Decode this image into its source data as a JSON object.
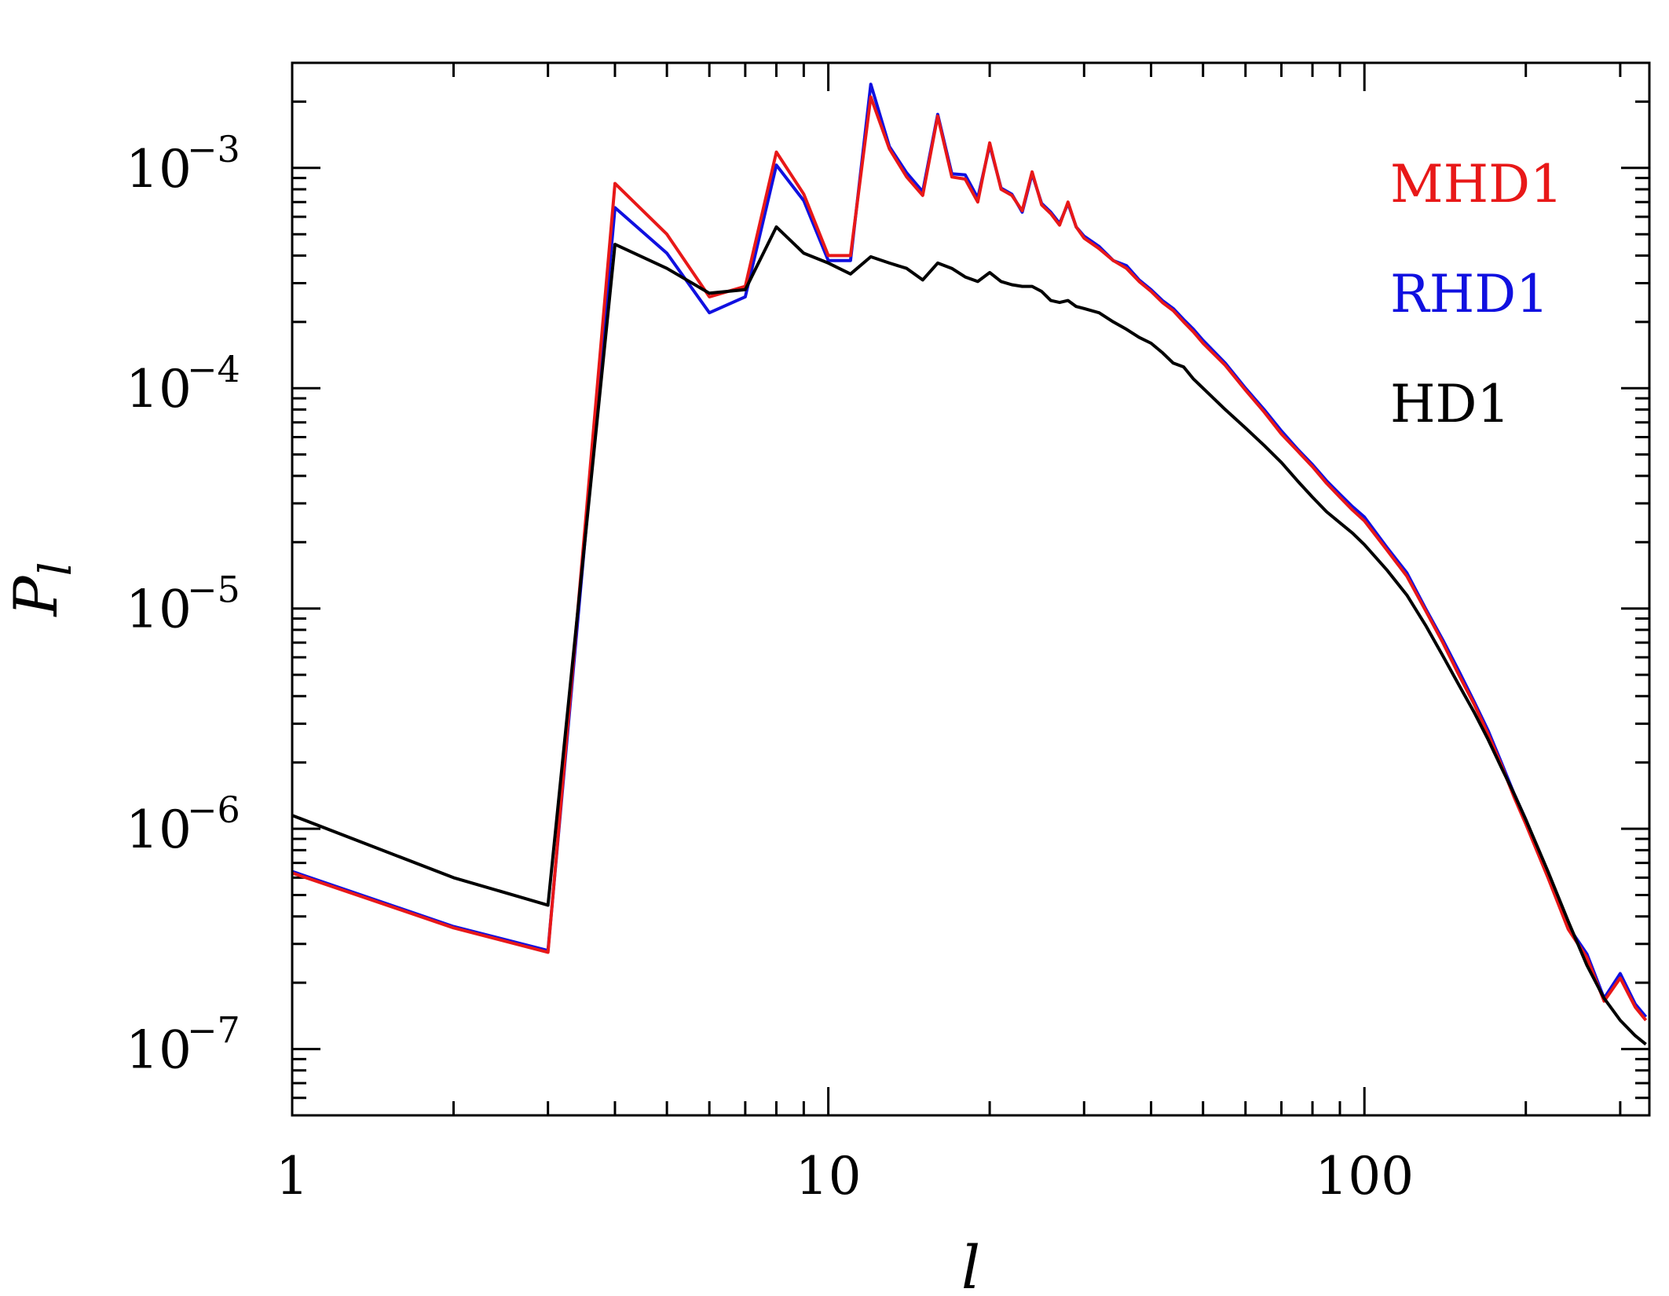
{
  "chart_data": {
    "type": "line",
    "xlabel": "l",
    "ylabel": "P",
    "ylabel_sub": "l",
    "xscale": "log",
    "yscale": "log",
    "xlim": [
      1,
      340
    ],
    "ylim": [
      5e-08,
      0.003
    ],
    "x_ticks": [
      {
        "value": 1,
        "label": "1"
      },
      {
        "value": 10,
        "label": "10"
      },
      {
        "value": 100,
        "label": "100"
      }
    ],
    "y_ticks": [
      {
        "value": 1e-07,
        "base": "10",
        "exp": "−7"
      },
      {
        "value": 1e-06,
        "base": "10",
        "exp": "−6"
      },
      {
        "value": 1e-05,
        "base": "10",
        "exp": "−5"
      },
      {
        "value": 0.0001,
        "base": "10",
        "exp": "−4"
      },
      {
        "value": 0.001,
        "base": "10",
        "exp": "−3"
      }
    ],
    "grid": false,
    "legend_position": "top-right",
    "series": [
      {
        "name": "RHD1",
        "color": "#1010e0",
        "x": [
          1,
          2,
          3,
          4,
          5,
          6,
          7,
          8,
          9,
          10,
          11,
          12,
          13,
          14,
          15,
          16,
          17,
          18,
          19,
          20,
          21,
          22,
          23,
          24,
          25,
          26,
          27,
          28,
          29,
          30,
          32,
          34,
          36,
          38,
          40,
          42,
          44,
          46,
          48,
          50,
          55,
          60,
          65,
          70,
          75,
          80,
          85,
          90,
          95,
          100,
          110,
          120,
          130,
          140,
          150,
          160,
          170,
          180,
          190,
          200,
          220,
          240,
          260,
          280,
          300,
          320,
          335
        ],
        "y": [
          6.4e-07,
          3.6e-07,
          2.8e-07,
          0.00066,
          0.00041,
          0.00022,
          0.00026,
          0.00103,
          0.00071,
          0.00038,
          0.00038,
          0.0024,
          0.00125,
          0.00095,
          0.00078,
          0.00175,
          0.00094,
          0.00093,
          0.00073,
          0.00127,
          0.00081,
          0.00076,
          0.00063,
          0.00094,
          0.00069,
          0.00063,
          0.00056,
          0.00069,
          0.00054,
          0.00049,
          0.00044,
          0.00038,
          0.00036,
          0.00031,
          0.00028,
          0.00025,
          0.00023,
          0.000205,
          0.000185,
          0.000165,
          0.00013,
          0.0001,
          8e-05,
          6.4e-05,
          5.3e-05,
          4.5e-05,
          3.8e-05,
          3.3e-05,
          2.9e-05,
          2.6e-05,
          1.9e-05,
          1.45e-05,
          1e-05,
          7.2e-06,
          5.2e-06,
          3.8e-06,
          2.8e-06,
          2e-06,
          1.45e-06,
          1.1e-06,
          6.2e-07,
          3.6e-07,
          2.7e-07,
          1.7e-07,
          2.2e-07,
          1.6e-07,
          1.4e-07
        ]
      },
      {
        "name": "MHD1",
        "color": "#e81818",
        "x": [
          1,
          2,
          3,
          4,
          5,
          6,
          7,
          8,
          9,
          10,
          11,
          12,
          13,
          14,
          15,
          16,
          17,
          18,
          19,
          20,
          21,
          22,
          23,
          24,
          25,
          26,
          27,
          28,
          29,
          30,
          32,
          34,
          36,
          38,
          40,
          42,
          44,
          46,
          48,
          50,
          55,
          60,
          65,
          70,
          75,
          80,
          85,
          90,
          95,
          100,
          110,
          120,
          130,
          140,
          150,
          160,
          170,
          180,
          190,
          200,
          220,
          240,
          260,
          280,
          300,
          320,
          335
        ],
        "y": [
          6.3e-07,
          3.55e-07,
          2.75e-07,
          0.00085,
          0.0005,
          0.00026,
          0.00029,
          0.00118,
          0.00076,
          0.0004,
          0.0004,
          0.0021,
          0.00122,
          0.00091,
          0.00075,
          0.00172,
          0.00091,
          0.00089,
          0.0007,
          0.0013,
          0.0008,
          0.00075,
          0.00064,
          0.00096,
          0.00068,
          0.00062,
          0.00055,
          0.0007,
          0.00054,
          0.00048,
          0.00043,
          0.00038,
          0.00035,
          0.000305,
          0.000275,
          0.000245,
          0.000225,
          0.0002,
          0.00018,
          0.00016,
          0.000127,
          9.8e-05,
          7.8e-05,
          6.2e-05,
          5.2e-05,
          4.4e-05,
          3.7e-05,
          3.2e-05,
          2.8e-05,
          2.5e-05,
          1.85e-05,
          1.4e-05,
          9.8e-06,
          7e-06,
          5e-06,
          3.7e-06,
          2.7e-06,
          1.95e-06,
          1.4e-06,
          1.05e-06,
          6e-07,
          3.5e-07,
          2.6e-07,
          1.65e-07,
          2.1e-07,
          1.55e-07,
          1.35e-07
        ]
      },
      {
        "name": "HD1",
        "color": "#000000",
        "x": [
          1,
          2,
          3,
          4,
          5,
          6,
          7,
          8,
          9,
          10,
          11,
          12,
          13,
          14,
          15,
          16,
          17,
          18,
          19,
          20,
          21,
          22,
          23,
          24,
          25,
          26,
          27,
          28,
          29,
          30,
          32,
          34,
          36,
          38,
          40,
          42,
          44,
          46,
          48,
          50,
          55,
          60,
          65,
          70,
          75,
          80,
          85,
          90,
          95,
          100,
          110,
          120,
          130,
          140,
          150,
          160,
          170,
          180,
          190,
          200,
          220,
          240,
          260,
          280,
          300,
          320,
          335
        ],
        "y": [
          1.15e-06,
          6e-07,
          4.5e-07,
          0.00045,
          0.00035,
          0.00027,
          0.00028,
          0.00054,
          0.00041,
          0.00037,
          0.00033,
          0.000395,
          0.00037,
          0.00035,
          0.00031,
          0.00037,
          0.00035,
          0.00032,
          0.000305,
          0.000335,
          0.000305,
          0.000295,
          0.00029,
          0.00029,
          0.000275,
          0.00025,
          0.000245,
          0.00025,
          0.000235,
          0.00023,
          0.00022,
          0.0002,
          0.000185,
          0.00017,
          0.00016,
          0.000145,
          0.00013,
          0.000125,
          0.00011,
          0.0001,
          8e-05,
          6.6e-05,
          5.5e-05,
          4.6e-05,
          3.8e-05,
          3.2e-05,
          2.75e-05,
          2.45e-05,
          2.2e-05,
          1.95e-05,
          1.5e-05,
          1.15e-05,
          8.4e-06,
          6.1e-06,
          4.5e-06,
          3.4e-06,
          2.55e-06,
          1.9e-06,
          1.45e-06,
          1.1e-06,
          6.4e-07,
          3.8e-07,
          2.4e-07,
          1.7e-07,
          1.35e-07,
          1.15e-07,
          1.05e-07
        ]
      }
    ],
    "legend": [
      {
        "label": "MHD1",
        "color": "#e81818"
      },
      {
        "label": "RHD1",
        "color": "#1010e0"
      },
      {
        "label": "HD1",
        "color": "#000000"
      }
    ]
  }
}
